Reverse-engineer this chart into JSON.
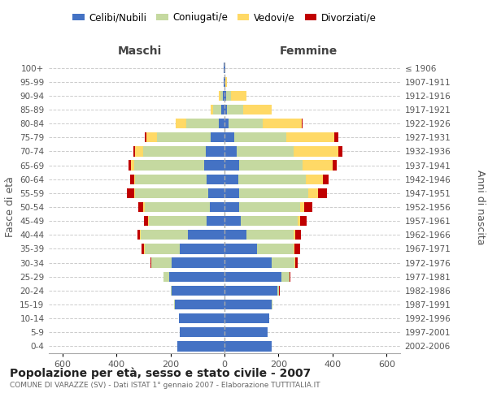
{
  "age_groups": [
    "100+",
    "95-99",
    "90-94",
    "85-89",
    "80-84",
    "75-79",
    "70-74",
    "65-69",
    "60-64",
    "55-59",
    "50-54",
    "45-49",
    "40-44",
    "35-39",
    "30-34",
    "25-29",
    "20-24",
    "15-19",
    "10-14",
    "5-9",
    "0-4"
  ],
  "birth_years": [
    "≤ 1906",
    "1907-1911",
    "1912-1916",
    "1917-1921",
    "1922-1926",
    "1927-1931",
    "1932-1936",
    "1937-1941",
    "1942-1946",
    "1947-1951",
    "1952-1956",
    "1957-1961",
    "1962-1966",
    "1967-1971",
    "1972-1976",
    "1977-1981",
    "1982-1986",
    "1987-1991",
    "1992-1996",
    "1997-2001",
    "2002-2006"
  ],
  "males_celibi": [
    2,
    2,
    5,
    12,
    20,
    50,
    70,
    75,
    65,
    60,
    55,
    65,
    135,
    165,
    195,
    205,
    195,
    185,
    170,
    165,
    175
  ],
  "males_coniugati": [
    0,
    0,
    10,
    30,
    120,
    200,
    230,
    260,
    265,
    270,
    240,
    215,
    175,
    130,
    75,
    20,
    5,
    2,
    0,
    0,
    0
  ],
  "males_vedovi": [
    0,
    0,
    5,
    10,
    40,
    40,
    30,
    10,
    5,
    5,
    5,
    2,
    2,
    2,
    0,
    0,
    0,
    0,
    0,
    0,
    0
  ],
  "males_divorziati": [
    0,
    0,
    0,
    0,
    2,
    5,
    8,
    10,
    15,
    25,
    20,
    15,
    10,
    10,
    5,
    2,
    0,
    0,
    0,
    0,
    0
  ],
  "females_nubili": [
    2,
    2,
    5,
    10,
    15,
    35,
    45,
    55,
    50,
    55,
    55,
    60,
    80,
    120,
    175,
    210,
    195,
    175,
    165,
    160,
    175
  ],
  "females_coniugate": [
    0,
    2,
    20,
    60,
    125,
    195,
    210,
    235,
    250,
    255,
    225,
    210,
    175,
    135,
    85,
    30,
    8,
    2,
    0,
    0,
    0
  ],
  "females_vedove": [
    2,
    5,
    55,
    105,
    145,
    175,
    165,
    110,
    65,
    35,
    15,
    10,
    8,
    5,
    2,
    2,
    0,
    0,
    0,
    0,
    0
  ],
  "females_divorziate": [
    0,
    0,
    0,
    0,
    5,
    15,
    15,
    15,
    20,
    35,
    30,
    25,
    20,
    20,
    8,
    2,
    2,
    0,
    0,
    0,
    0
  ],
  "color_celibi": "#4472C4",
  "color_coniugati": "#c5d9a0",
  "color_vedovi": "#FFD966",
  "color_divorziati": "#C00000",
  "title": "Popolazione per età, sesso e stato civile - 2007",
  "subtitle": "COMUNE DI VARAZZE (SV) - Dati ISTAT 1° gennaio 2007 - Elaborazione TUTTITALIA.IT",
  "legend_labels": [
    "Celibi/Nubili",
    "Coniugati/e",
    "Vedovi/e",
    "Divorziati/e"
  ],
  "maschi_label": "Maschi",
  "femmine_label": "Femmine",
  "ylabel_left": "Fasce di età",
  "ylabel_right": "Anni di nascita",
  "xlim": 650,
  "bg_color": "#ffffff"
}
